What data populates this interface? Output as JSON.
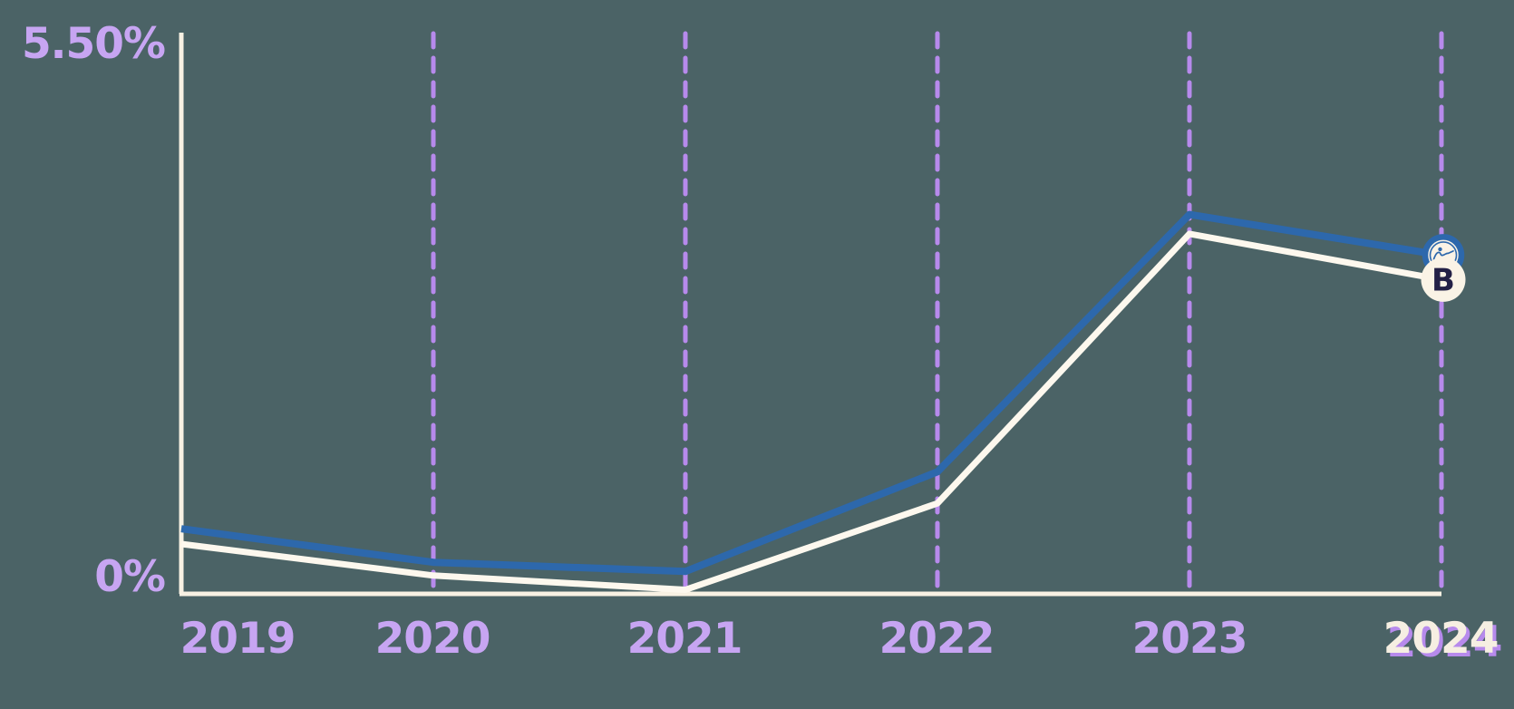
{
  "chart_data": {
    "type": "line",
    "title": "",
    "categories": [
      "2019",
      "2020",
      "2021",
      "2022",
      "2023",
      "2024"
    ],
    "series": [
      {
        "name": "blue-series",
        "color": "#2d68ac",
        "end_marker": "logo-badge",
        "values": [
          0.64,
          0.31,
          0.22,
          1.2,
          3.73,
          3.33
        ]
      },
      {
        "name": "cream-series",
        "color": "#fdf8ee",
        "end_marker": "B-badge",
        "values": [
          0.49,
          0.18,
          0.04,
          0.89,
          3.54,
          3.09
        ]
      }
    ],
    "y_axis": {
      "max_label": "5.50%",
      "min_label": "0%",
      "max_value": 5.5,
      "min_value": 0
    },
    "x_axis": {
      "gridlines": "dashed-vertical",
      "highlighted_category": "2024"
    },
    "legend": "none",
    "grid": "vertical-only"
  },
  "markers": {
    "b_label": "B",
    "logo_icon": "figure-illustration-icon"
  },
  "colors": {
    "background": "#4b6366",
    "axis": "#f8f1e3",
    "tick_label": "#c7a5f2",
    "gridline": "#b78aec",
    "blue_line": "#2d68ac",
    "cream_line": "#fdf8ee",
    "badge_fill": "#faf3e6",
    "b_letter": "#232046",
    "highlight_label": "#f6efe2"
  }
}
